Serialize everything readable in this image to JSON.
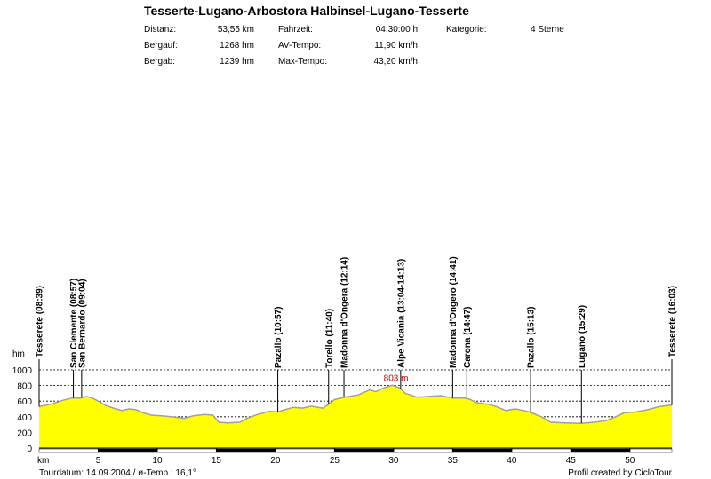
{
  "header": {
    "title": "Tesserte-Lugano-Arbostora Halbinsel-Lugano-Tesserte",
    "stats": [
      {
        "label": "Distanz:",
        "value": "53,55 km"
      },
      {
        "label": "Bergauf:",
        "value": "1268 hm"
      },
      {
        "label": "Bergab:",
        "value": "1239 hm"
      },
      {
        "label": "Fahrzeit:",
        "value": "04:30:00 h"
      },
      {
        "label": "AV-Tempo:",
        "value": "11,90 km/h"
      },
      {
        "label": "Max-Tempo:",
        "value": "43,20 km/h"
      },
      {
        "label": "Kategorie:",
        "value": "4 Sterne"
      }
    ]
  },
  "footer": {
    "date": "Tourdatum: 14.09.2004  /  ø-Temp.: 16,1°",
    "credit": "Profil created by CicloTour"
  },
  "colors": {
    "fill": "#ffff00",
    "line": "#a0a0a0",
    "axis": "#000000",
    "max_label": "#c00000"
  },
  "chart_data": {
    "type": "area",
    "ylabel": "hm",
    "xlabel": "km",
    "xlim": [
      0,
      53.55
    ],
    "ylim": [
      0,
      1000
    ],
    "yticks": [
      0,
      200,
      400,
      600,
      800,
      1000
    ],
    "xticks": [
      5,
      10,
      15,
      20,
      25,
      30,
      35,
      40,
      45,
      50
    ],
    "max_label": "803 m",
    "max_point": {
      "x": 29.9,
      "y": 803
    },
    "profile": [
      [
        0,
        530
      ],
      [
        1,
        560
      ],
      [
        2,
        610
      ],
      [
        2.8,
        640
      ],
      [
        3.5,
        640
      ],
      [
        4,
        660
      ],
      [
        4.5,
        640
      ],
      [
        5,
        600
      ],
      [
        5.6,
        545
      ],
      [
        6.3,
        510
      ],
      [
        7,
        480
      ],
      [
        7.6,
        500
      ],
      [
        8.2,
        490
      ],
      [
        8.8,
        450
      ],
      [
        9.5,
        420
      ],
      [
        10.5,
        410
      ],
      [
        11.5,
        395
      ],
      [
        12.3,
        380
      ],
      [
        13,
        410
      ],
      [
        14,
        430
      ],
      [
        14.7,
        420
      ],
      [
        15.2,
        330
      ],
      [
        16,
        320
      ],
      [
        17,
        330
      ],
      [
        17.6,
        380
      ],
      [
        18.5,
        430
      ],
      [
        19.5,
        470
      ],
      [
        20.2,
        460
      ],
      [
        20.8,
        490
      ],
      [
        21.5,
        520
      ],
      [
        22.3,
        510
      ],
      [
        23,
        535
      ],
      [
        24,
        510
      ],
      [
        24.5,
        560
      ],
      [
        25,
        620
      ],
      [
        26,
        655
      ],
      [
        27,
        680
      ],
      [
        28,
        745
      ],
      [
        28.5,
        720
      ],
      [
        29.2,
        770
      ],
      [
        29.9,
        803
      ],
      [
        30.5,
        770
      ],
      [
        31,
        700
      ],
      [
        32,
        650
      ],
      [
        33,
        660
      ],
      [
        34,
        670
      ],
      [
        35,
        640
      ],
      [
        36,
        640
      ],
      [
        36.5,
        620
      ],
      [
        37,
        580
      ],
      [
        38,
        560
      ],
      [
        38.7,
        530
      ],
      [
        39.5,
        480
      ],
      [
        40.3,
        500
      ],
      [
        41,
        480
      ],
      [
        41.5,
        460
      ],
      [
        42.5,
        400
      ],
      [
        43.3,
        330
      ],
      [
        44.5,
        320
      ],
      [
        45.8,
        315
      ],
      [
        47,
        330
      ],
      [
        48,
        350
      ],
      [
        48.8,
        400
      ],
      [
        49.5,
        450
      ],
      [
        50.5,
        460
      ],
      [
        51.5,
        490
      ],
      [
        52.5,
        530
      ],
      [
        53.55,
        550
      ]
    ],
    "waypoints": [
      {
        "label": "Tesserete (08:39)",
        "x": 0
      },
      {
        "label": "San Clemente (08:57)",
        "x": 2.9
      },
      {
        "label": "San Bernardo (09:04)",
        "x": 3.6
      },
      {
        "label": "Pazallo (10:57)",
        "x": 20.2
      },
      {
        "label": "Torello (11:40)",
        "x": 24.5
      },
      {
        "label": "Madonna d'Ongera (12:14)",
        "x": 25.8
      },
      {
        "label": "Alpe Vicania (13:04-14:13)",
        "x": 30.6
      },
      {
        "label": "Madonna d'Ongero (14:41)",
        "x": 35.0
      },
      {
        "label": "Carona (14:47)",
        "x": 36.2
      },
      {
        "label": "Pazallo (15:13)",
        "x": 41.6
      },
      {
        "label": "Lugano (15:29)",
        "x": 45.9
      },
      {
        "label": "Tesserete (16:03)",
        "x": 53.55
      }
    ]
  }
}
